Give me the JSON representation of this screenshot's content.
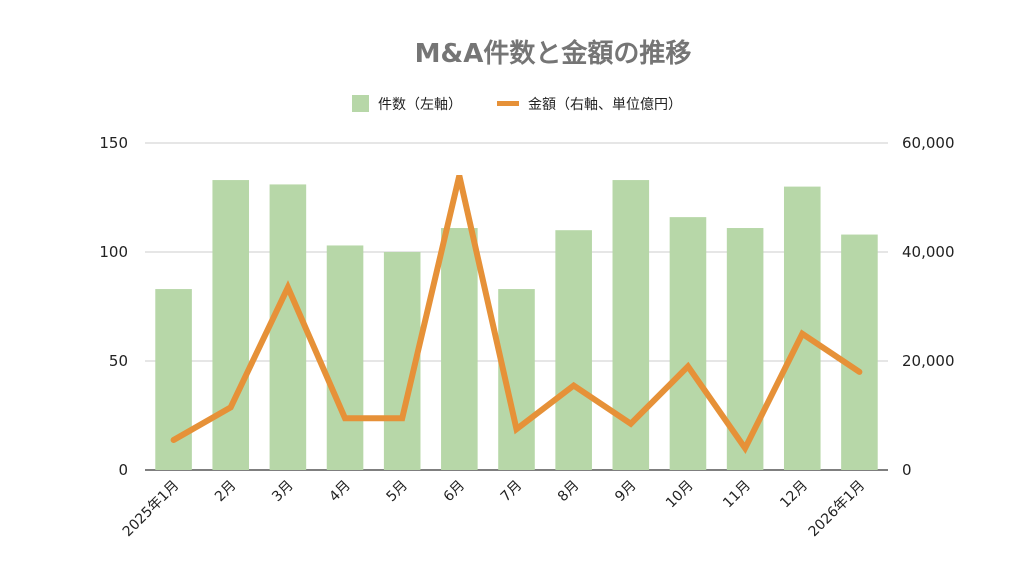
{
  "chart_data": {
    "type": "bar",
    "title": "M&A件数と金額の推移",
    "categories": [
      "2025年1月",
      "2月",
      "3月",
      "4月",
      "5月",
      "6月",
      "7月",
      "8月",
      "9月",
      "10月",
      "11月",
      "12月",
      "2026年1月"
    ],
    "series": [
      {
        "name": "件数（左軸）",
        "type": "bar",
        "axis": "left",
        "color": "#b7d7a8",
        "values": [
          83,
          133,
          131,
          103,
          100,
          111,
          83,
          110,
          133,
          116,
          111,
          130,
          108
        ]
      },
      {
        "name": "金額（右軸、単位億円）",
        "type": "line",
        "axis": "right",
        "color": "#e69138",
        "values": [
          5500,
          11500,
          33500,
          9500,
          9500,
          54000,
          7500,
          15500,
          8500,
          19000,
          4000,
          25000,
          18000
        ]
      }
    ],
    "y_left": {
      "ylim": [
        0,
        150
      ],
      "ticks": [
        "0",
        "50",
        "100",
        "150"
      ],
      "tick_values": [
        0,
        50,
        100,
        150
      ]
    },
    "y_right": {
      "ylim": [
        0,
        60000
      ],
      "ticks": [
        "0",
        "20,000",
        "40,000",
        "60,000"
      ],
      "tick_values": [
        0,
        20000,
        40000,
        60000
      ]
    },
    "grid": true,
    "legend_position": "top"
  }
}
